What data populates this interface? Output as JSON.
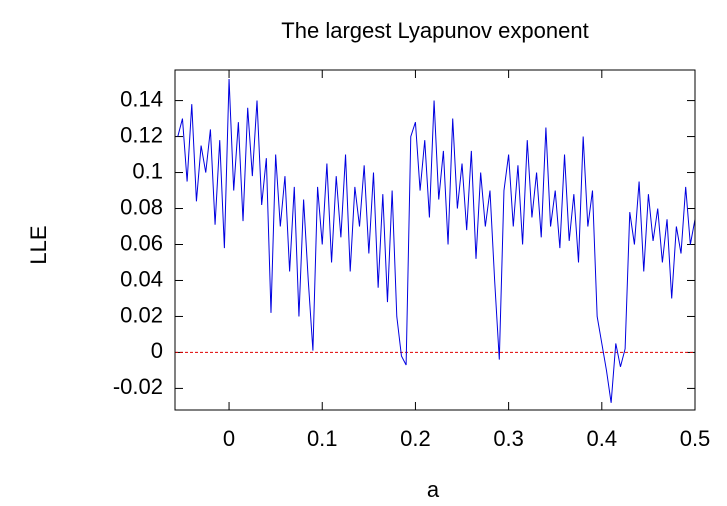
{
  "chart_data": {
    "type": "line",
    "title": "The largest Lyapunov exponent",
    "xlabel": "a",
    "ylabel": "LLE",
    "x": [
      -0.055,
      -0.05,
      -0.045,
      -0.04,
      -0.035,
      -0.03,
      -0.025,
      -0.02,
      -0.015,
      -0.01,
      -0.005,
      0,
      0.005,
      0.01,
      0.015,
      0.02,
      0.025,
      0.03,
      0.035,
      0.04,
      0.045,
      0.05,
      0.055,
      0.06,
      0.065,
      0.07,
      0.075,
      0.08,
      0.085,
      0.09,
      0.095,
      0.1,
      0.105,
      0.11,
      0.115,
      0.12,
      0.125,
      0.13,
      0.135,
      0.14,
      0.145,
      0.15,
      0.155,
      0.16,
      0.165,
      0.17,
      0.175,
      0.18,
      0.185,
      0.19,
      0.195,
      0.2,
      0.205,
      0.21,
      0.215,
      0.22,
      0.225,
      0.23,
      0.235,
      0.24,
      0.245,
      0.25,
      0.255,
      0.26,
      0.265,
      0.27,
      0.275,
      0.28,
      0.285,
      0.29,
      0.295,
      0.3,
      0.305,
      0.31,
      0.315,
      0.32,
      0.325,
      0.33,
      0.335,
      0.34,
      0.345,
      0.35,
      0.355,
      0.36,
      0.365,
      0.37,
      0.375,
      0.38,
      0.385,
      0.39,
      0.395,
      0.4,
      0.405,
      0.41,
      0.415,
      0.42,
      0.425,
      0.43,
      0.435,
      0.44,
      0.445,
      0.45,
      0.455,
      0.46,
      0.465,
      0.47,
      0.475,
      0.48,
      0.485,
      0.49,
      0.495,
      0.5
    ],
    "series": [
      {
        "color": "#0000e0",
        "values": [
          0.12,
          0.13,
          0.095,
          0.138,
          0.084,
          0.115,
          0.1,
          0.124,
          0.071,
          0.118,
          0.058,
          0.152,
          0.09,
          0.128,
          0.073,
          0.136,
          0.098,
          0.14,
          0.082,
          0.108,
          0.022,
          0.11,
          0.07,
          0.098,
          0.045,
          0.092,
          0.02,
          0.085,
          0.04,
          0.001,
          0.092,
          0.06,
          0.105,
          0.05,
          0.098,
          0.064,
          0.11,
          0.045,
          0.092,
          0.07,
          0.104,
          0.055,
          0.1,
          0.036,
          0.088,
          0.028,
          0.09,
          0.02,
          -0.002,
          -0.007,
          0.12,
          0.128,
          0.09,
          0.118,
          0.075,
          0.14,
          0.085,
          0.112,
          0.06,
          0.13,
          0.08,
          0.105,
          0.068,
          0.112,
          0.052,
          0.1,
          0.07,
          0.09,
          0.04,
          -0.004,
          0.09,
          0.11,
          0.07,
          0.104,
          0.06,
          0.118,
          0.075,
          0.1,
          0.064,
          0.125,
          0.07,
          0.09,
          0.058,
          0.11,
          0.062,
          0.088,
          0.05,
          0.12,
          0.07,
          0.09,
          0.02,
          0.005,
          -0.01,
          -0.028,
          0.005,
          -0.008,
          0.002,
          0.078,
          0.06,
          0.095,
          0.045,
          0.088,
          0.062,
          0.08,
          0.05,
          0.074,
          0.03,
          0.07,
          0.055,
          0.092,
          0.06,
          0.074
        ]
      }
    ],
    "reference_line": {
      "y": 0,
      "color": "#e00000"
    },
    "xlim": [
      -0.058,
      0.5
    ],
    "xticks": [
      0,
      0.1,
      0.2,
      0.3,
      0.4,
      0.5
    ],
    "ylim": [
      -0.032,
      0.157
    ],
    "yticks": [
      -0.02,
      0,
      0.02,
      0.04,
      0.06,
      0.08,
      0.1,
      0.12,
      0.14
    ]
  }
}
